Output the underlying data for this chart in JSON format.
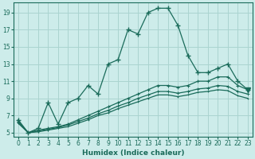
{
  "xlabel": "Humidex (Indice chaleur)",
  "bg_color": "#cdecea",
  "grid_color": "#aad4d0",
  "line_color": "#1a6b5a",
  "xlim": [
    -0.5,
    23.5
  ],
  "ylim": [
    4.5,
    20.2
  ],
  "xticks": [
    0,
    1,
    2,
    3,
    4,
    5,
    6,
    7,
    8,
    9,
    10,
    11,
    12,
    13,
    14,
    15,
    16,
    17,
    18,
    19,
    20,
    21,
    22,
    23
  ],
  "yticks": [
    5,
    7,
    9,
    11,
    13,
    15,
    17,
    19
  ],
  "series1_x": [
    0,
    1,
    2,
    3,
    4,
    5,
    6,
    7,
    8,
    9,
    10,
    11,
    12,
    13,
    14,
    15,
    16,
    17,
    18,
    19,
    20,
    21,
    22,
    23
  ],
  "series1_y": [
    6.5,
    5.0,
    5.5,
    8.5,
    6.0,
    8.5,
    9.0,
    10.5,
    9.5,
    13.0,
    13.5,
    17.0,
    16.5,
    19.0,
    19.5,
    19.5,
    17.5,
    14.0,
    12.0,
    12.0,
    12.5,
    13.0,
    11.0,
    10.0
  ],
  "series2_x": [
    0,
    1,
    2,
    3,
    4,
    5,
    6,
    7,
    8,
    9,
    10,
    11,
    12,
    13,
    14,
    15,
    16,
    17,
    18,
    19,
    20,
    21,
    22,
    23
  ],
  "series2_y": [
    6.3,
    5.0,
    5.3,
    5.5,
    5.7,
    6.0,
    6.5,
    7.0,
    7.5,
    8.0,
    8.5,
    9.0,
    9.5,
    10.0,
    10.5,
    10.5,
    10.3,
    10.5,
    11.0,
    11.0,
    11.5,
    11.5,
    10.5,
    10.0
  ],
  "series3_x": [
    0,
    1,
    2,
    3,
    4,
    5,
    6,
    7,
    8,
    9,
    10,
    11,
    12,
    13,
    14,
    15,
    16,
    17,
    18,
    19,
    20,
    21,
    22,
    23
  ],
  "series3_y": [
    6.2,
    5.0,
    5.2,
    5.4,
    5.6,
    5.9,
    6.3,
    6.7,
    7.2,
    7.6,
    8.1,
    8.5,
    9.0,
    9.4,
    9.8,
    9.8,
    9.6,
    9.8,
    10.1,
    10.2,
    10.5,
    10.4,
    9.8,
    9.5
  ],
  "series4_x": [
    0,
    1,
    2,
    3,
    4,
    5,
    6,
    7,
    8,
    9,
    10,
    11,
    12,
    13,
    14,
    15,
    16,
    17,
    18,
    19,
    20,
    21,
    22,
    23
  ],
  "series4_y": [
    6.1,
    5.0,
    5.1,
    5.3,
    5.5,
    5.7,
    6.1,
    6.5,
    7.0,
    7.3,
    7.8,
    8.2,
    8.6,
    9.0,
    9.4,
    9.4,
    9.2,
    9.4,
    9.7,
    9.8,
    10.0,
    9.9,
    9.3,
    9.0
  ]
}
